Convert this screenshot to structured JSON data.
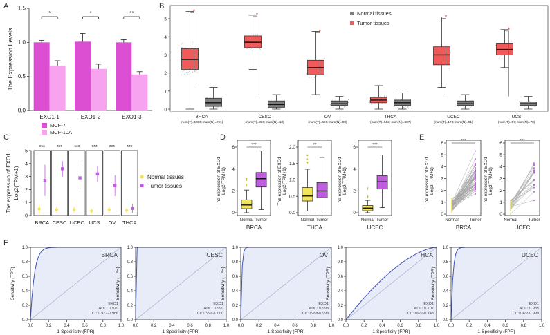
{
  "colors": {
    "mcf7": "#dc4fd3",
    "mcf10a": "#f7a3f0",
    "tumor": "#ef5a5a",
    "normal": "#7f7f7f",
    "yellow_normal": "#f2e55e",
    "purple_tumor": "#c05ee0",
    "roc_line": "#3b50b8",
    "roc_fill": "#e8ecf8",
    "sig_red": "#d43b2e"
  },
  "panels": {
    "A": "A",
    "B": "B",
    "C": "C",
    "D": "D",
    "E": "E",
    "F": "F"
  },
  "chart_data": [
    {
      "id": "A",
      "type": "bar",
      "ylabel": "The Expression Levels",
      "ylim": [
        0,
        1.5
      ],
      "yticks": [
        "0.0",
        "0.5",
        "1.0",
        "1.5"
      ],
      "categories": [
        "EXO1-1",
        "EXO1-2",
        "EXO1-3"
      ],
      "series": [
        {
          "name": "MCF-7",
          "values": [
            1.0,
            1.01,
            1.0
          ],
          "errors": [
            0.03,
            0.12,
            0.04
          ]
        },
        {
          "name": "MCF-10A",
          "values": [
            0.66,
            0.61,
            0.53
          ],
          "errors": [
            0.07,
            0.07,
            0.04
          ]
        }
      ],
      "significance": [
        "*",
        "*",
        "**"
      ]
    },
    {
      "id": "B",
      "type": "box",
      "ylim": [
        0,
        5.5
      ],
      "yticks": [
        "0",
        "1",
        "2",
        "3",
        "4",
        "5"
      ],
      "legend": [
        "Normal tissues",
        "Tumor tissues"
      ],
      "categories": [
        {
          "name": "BRCA",
          "sub": "(num(T)=1085; num(N)=291)"
        },
        {
          "name": "CESC",
          "sub": "(num(T)=306; num(N)=13)"
        },
        {
          "name": "OV",
          "sub": "(num(T)=426; num(N)=88)"
        },
        {
          "name": "THCA",
          "sub": "(num(T)=512; num(N)=337)"
        },
        {
          "name": "UCEC",
          "sub": "(num(T)=174; num(N)=91)"
        },
        {
          "name": "UCS",
          "sub": "(num(T)=57; num(N)=78)"
        }
      ],
      "tumor": [
        {
          "q1": 2.2,
          "med": 2.75,
          "q3": 3.35,
          "lo": 0.0,
          "hi": 5.4
        },
        {
          "q1": 3.4,
          "med": 3.7,
          "q3": 4.05,
          "lo": 2.2,
          "hi": 5.2
        },
        {
          "q1": 1.9,
          "med": 2.3,
          "q3": 2.7,
          "lo": 0.8,
          "hi": 4.3
        },
        {
          "q1": 0.35,
          "med": 0.5,
          "q3": 0.65,
          "lo": 0.0,
          "hi": 1.3
        },
        {
          "q1": 2.45,
          "med": 3.0,
          "q3": 3.45,
          "lo": 1.2,
          "hi": 5.1
        },
        {
          "q1": 3.0,
          "med": 3.3,
          "q3": 3.65,
          "lo": 2.3,
          "hi": 4.4
        }
      ],
      "normal": [
        {
          "q1": 0.15,
          "med": 0.35,
          "q3": 0.6,
          "lo": 0.0,
          "hi": 1.2
        },
        {
          "q1": 0.1,
          "med": 0.25,
          "q3": 0.45,
          "lo": 0.0,
          "hi": 0.8
        },
        {
          "q1": 0.2,
          "med": 0.3,
          "q3": 0.45,
          "lo": 0.0,
          "hi": 0.7
        },
        {
          "q1": 0.2,
          "med": 0.35,
          "q3": 0.5,
          "lo": 0.0,
          "hi": 0.9
        },
        {
          "q1": 0.2,
          "med": 0.3,
          "q3": 0.45,
          "lo": 0.0,
          "hi": 0.8
        },
        {
          "q1": 0.2,
          "med": 0.3,
          "q3": 0.4,
          "lo": 0.0,
          "hi": 0.7
        }
      ],
      "significance": [
        "*",
        "*",
        "*",
        "",
        "*",
        "*"
      ]
    },
    {
      "id": "C",
      "type": "scatter",
      "ylabel": "The expression of EXO1",
      "ylabel2": "Log2(TPM+1)",
      "ylim": [
        0,
        5
      ],
      "yticks": [
        "0",
        "1",
        "2",
        "3",
        "4",
        "5"
      ],
      "categories": [
        "BRCA",
        "CESC",
        "UCEC",
        "UCS",
        "OV",
        "THCA"
      ],
      "legend": [
        "Normal tissues",
        "Tumor tissues"
      ],
      "normal": [
        {
          "mean": 0.5,
          "err": 0.35
        },
        {
          "mean": 0.45,
          "err": 0.25
        },
        {
          "mean": 0.45,
          "err": 0.25
        },
        {
          "mean": 0.35,
          "err": 0.2
        },
        {
          "mean": 0.45,
          "err": 0.25
        },
        {
          "mean": 0.4,
          "err": 0.2
        }
      ],
      "tumor": [
        {
          "mean": 2.7,
          "err": 1.2
        },
        {
          "mean": 3.6,
          "err": 0.6
        },
        {
          "mean": 2.9,
          "err": 1.1
        },
        {
          "mean": 3.2,
          "err": 0.6
        },
        {
          "mean": 2.3,
          "err": 0.8
        },
        {
          "mean": 0.55,
          "err": 0.35
        }
      ],
      "significance": [
        "***",
        "***",
        "***",
        "***",
        "***",
        "***"
      ]
    },
    {
      "id": "D",
      "type": "box",
      "ylabel": "The expression of EXO1",
      "ylabel2": "Log2(TPM+1)",
      "xgroups": [
        "Normal",
        "Tumor"
      ],
      "plots": [
        {
          "title": "BRCA",
          "ylim": [
            0,
            6.5
          ],
          "yticks": [
            "0",
            "2",
            "4",
            "6"
          ],
          "sig": "***",
          "normal": {
            "q1": 0.4,
            "med": 0.75,
            "q3": 1.25,
            "lo": 0.0,
            "hi": 2.2
          },
          "tumor": {
            "q1": 2.5,
            "med": 3.3,
            "q3": 3.9,
            "lo": 0.3,
            "hi": 6.0
          }
        },
        {
          "title": "THCA",
          "ylim": [
            0,
            2.0
          ],
          "yticks": [
            "0.0",
            "0.5",
            "1.0",
            "1.5",
            "2.0"
          ],
          "sig": "**",
          "normal": {
            "q1": 0.35,
            "med": 0.5,
            "q3": 0.75,
            "lo": 0.05,
            "hi": 1.3
          },
          "tumor": {
            "q1": 0.45,
            "med": 0.65,
            "q3": 0.9,
            "lo": 0.05,
            "hi": 1.65
          }
        },
        {
          "title": "UCEC",
          "ylim": [
            0,
            6.5
          ],
          "yticks": [
            "0",
            "2",
            "4",
            "6"
          ],
          "sig": "***",
          "normal": {
            "q1": 0.2,
            "med": 0.45,
            "q3": 0.7,
            "lo": 0.0,
            "hi": 1.2
          },
          "tumor": {
            "q1": 2.3,
            "med": 3.0,
            "q3": 3.6,
            "lo": 0.5,
            "hi": 5.6
          }
        }
      ]
    },
    {
      "id": "E",
      "type": "line",
      "ylabel": "The expression of EXO1",
      "ylabel2": "Log2(TPM+1)",
      "xgroups": [
        "Normal",
        "Tumor"
      ],
      "plots": [
        {
          "title": "BRCA",
          "ylim": [
            0,
            6
          ],
          "yticks": [
            "0",
            "1",
            "2",
            "3",
            "4",
            "5",
            "6"
          ],
          "sig": "***",
          "pairs": 60
        },
        {
          "title": "UCEC",
          "ylim": [
            0,
            6
          ],
          "yticks": [
            "0",
            "1",
            "2",
            "3",
            "4",
            "5",
            "6"
          ],
          "sig": "***",
          "pairs": 20
        }
      ]
    },
    {
      "id": "F",
      "type": "line",
      "xlabel": "1-Specificity (FPR)",
      "ylabel": "Sensitivity (TPR)",
      "xticks": [
        "0.0",
        "0.2",
        "0.4",
        "0.6",
        "0.8",
        "1.0"
      ],
      "yticks": [
        "0.0",
        "0.2",
        "0.4",
        "0.6",
        "0.8",
        "1.0"
      ],
      "plots": [
        {
          "title": "BRCA",
          "gene": "EXO1",
          "auc": "AUC: 0.979",
          "ci": "CI: 0.972-0.986",
          "shape": 22
        },
        {
          "title": "CESC",
          "gene": "EXO1",
          "auc": "AUC: 0.999",
          "ci": "CI: 0.998-1.000",
          "shape": 300
        },
        {
          "title": "OV",
          "gene": "EXO1",
          "auc": "AUC: 0.993",
          "ci": "CI: 0.988-0.998",
          "shape": 80
        },
        {
          "title": "THCA",
          "gene": "EXO1",
          "auc": "AUC: 0.707",
          "ci": "CI: 0.671-0.743",
          "shape": 1.6
        },
        {
          "title": "UCEC",
          "gene": "EXO1",
          "auc": "AUC: 0.985",
          "ci": "CI: 0.972-0.999",
          "shape": 45
        }
      ]
    }
  ]
}
